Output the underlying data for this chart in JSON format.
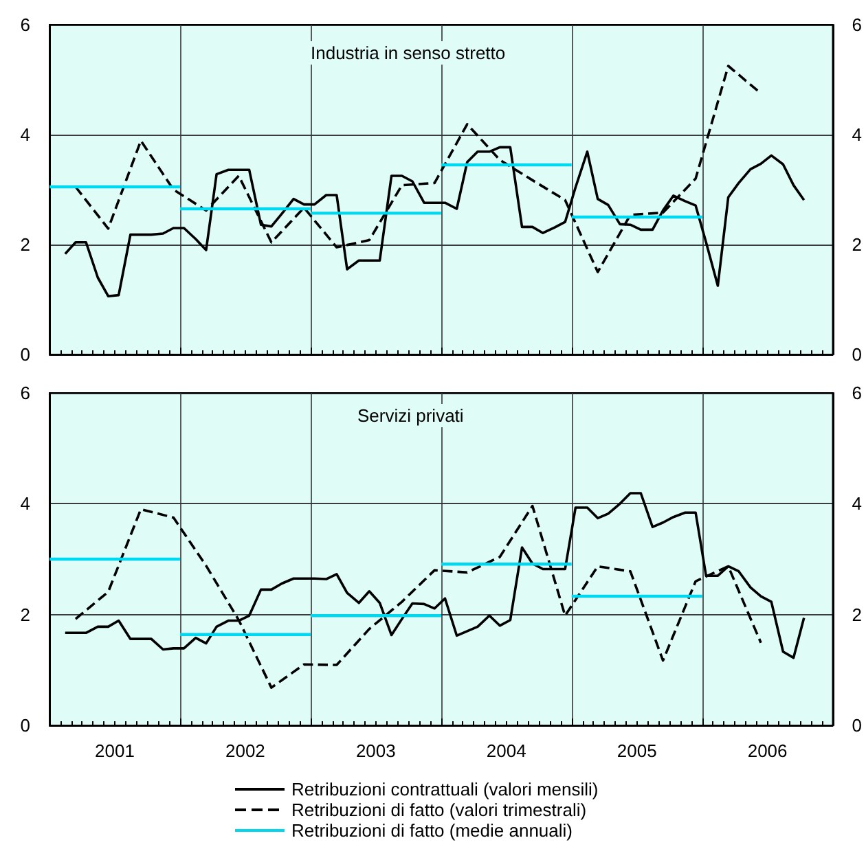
{
  "chart_data": [
    {
      "type": "line",
      "title": "Industria in senso stretto",
      "xlim": [
        2001,
        2007
      ],
      "xticks": [
        {
          "value": 2001,
          "label": null
        },
        {
          "value": 2002,
          "label": null
        },
        {
          "value": 2003,
          "label": null
        },
        {
          "value": 2004,
          "label": null
        },
        {
          "value": 2005,
          "label": null
        },
        {
          "value": 2006,
          "label": null
        },
        {
          "value": 2007,
          "label": null
        }
      ],
      "ylim": [
        0,
        6
      ],
      "yticks": [
        0,
        2,
        4,
        6
      ],
      "y2lim": [
        0,
        6
      ],
      "y2ticks": [
        0,
        2,
        4,
        6
      ],
      "grid": true,
      "legend": false,
      "tick_labels": "y",
      "marker": "none",
      "series": [
        {
          "color": "#000000",
          "line_style": "solid",
          "x": [
            2001.12,
            2001.2,
            2001.28,
            2001.37,
            2001.45,
            2001.53,
            2001.62,
            2001.7,
            2001.78,
            2001.87,
            2001.95,
            2002.03,
            2002.12,
            2002.2,
            2002.28,
            2002.37,
            2002.45,
            2002.53,
            2002.62,
            2002.7,
            2002.78,
            2002.87,
            2002.95,
            2003.03,
            2003.12,
            2003.2,
            2003.28,
            2003.37,
            2003.45,
            2003.53,
            2003.62,
            2003.7,
            2003.78,
            2003.87,
            2003.95,
            2004.03,
            2004.12,
            2004.2,
            2004.28,
            2004.37,
            2004.45,
            2004.53,
            2004.62,
            2004.7,
            2004.78,
            2004.87,
            2004.95,
            2005.03,
            2005.12,
            2005.2,
            2005.28,
            2005.37,
            2005.45,
            2005.53,
            2005.62,
            2005.7,
            2005.78,
            2005.87,
            2005.95,
            2006.03,
            2006.12,
            2006.2,
            2006.28,
            2006.37,
            2006.45,
            2006.53,
            2006.62,
            2006.7,
            2006.78
          ],
          "values": [
            1.83,
            2.04,
            2.04,
            1.4,
            1.06,
            1.08,
            2.18,
            2.18,
            2.18,
            2.2,
            2.3,
            2.3,
            2.1,
            1.9,
            3.28,
            3.36,
            3.36,
            3.36,
            2.36,
            2.33,
            2.56,
            2.83,
            2.73,
            2.73,
            2.9,
            2.9,
            1.55,
            1.71,
            1.71,
            1.71,
            3.25,
            3.25,
            3.15,
            2.76,
            2.76,
            2.76,
            2.65,
            3.5,
            3.69,
            3.69,
            3.77,
            3.77,
            2.32,
            2.32,
            2.21,
            2.31,
            2.41,
            3.04,
            3.69,
            2.83,
            2.72,
            2.37,
            2.36,
            2.27,
            2.27,
            2.62,
            2.89,
            2.79,
            2.71,
            2.04,
            1.25,
            2.86,
            3.12,
            3.37,
            3.47,
            3.62,
            3.46,
            3.08,
            2.81
          ]
        },
        {
          "color": "#000000",
          "line_style": "dashed",
          "x": [
            2001.2,
            2001.45,
            2001.7,
            2001.95,
            2002.2,
            2002.45,
            2002.7,
            2002.95,
            2003.2,
            2003.45,
            2003.7,
            2003.95,
            2004.2,
            2004.45,
            2004.7,
            2004.95,
            2005.2,
            2005.45,
            2005.7,
            2005.95,
            2006.2,
            2006.45
          ],
          "values": [
            3.05,
            2.29,
            3.89,
            3.0,
            2.62,
            3.25,
            2.04,
            2.67,
            1.95,
            2.08,
            3.08,
            3.12,
            4.19,
            3.54,
            3.17,
            2.81,
            1.5,
            2.54,
            2.58,
            3.2,
            5.25,
            4.75
          ]
        },
        {
          "color": "#00d8f0",
          "line_style": "solid",
          "x": [
            2001,
            2002,
            null,
            2002,
            2003,
            null,
            2003,
            2004,
            null,
            2004,
            2005,
            null,
            2005,
            2006
          ],
          "values": [
            3.05,
            3.05,
            null,
            2.65,
            2.65,
            null,
            2.57,
            2.57,
            null,
            3.45,
            3.45,
            null,
            2.5,
            2.5
          ]
        }
      ]
    },
    {
      "type": "line",
      "title": "Servizi privati",
      "xlim": [
        2001,
        2007
      ],
      "xticks": [
        {
          "value": 2001,
          "label": null
        },
        {
          "value": 2001.5,
          "label": "2001"
        },
        {
          "value": 2002,
          "label": null
        },
        {
          "value": 2002.5,
          "label": "2002"
        },
        {
          "value": 2003,
          "label": null
        },
        {
          "value": 2003.5,
          "label": "2003"
        },
        {
          "value": 2004,
          "label": null
        },
        {
          "value": 2004.5,
          "label": "2004"
        },
        {
          "value": 2005,
          "label": null
        },
        {
          "value": 2005.5,
          "label": "2005"
        },
        {
          "value": 2006,
          "label": null
        },
        {
          "value": 2006.5,
          "label": "2006"
        },
        {
          "value": 2007,
          "label": null
        }
      ],
      "ylim": [
        0,
        6
      ],
      "yticks": [
        0,
        2,
        4,
        6
      ],
      "y2lim": [
        0,
        6
      ],
      "y2ticks": [
        0,
        2,
        4,
        6
      ],
      "grid": true,
      "legend": "bottom",
      "marker": "none",
      "series": [
        {
          "name": "Retribuzioni contrattuali (valori mensili)",
          "color": "#000000",
          "line_style": "solid",
          "x": [
            2001.12,
            2001.2,
            2001.28,
            2001.37,
            2001.45,
            2001.53,
            2001.62,
            2001.7,
            2001.78,
            2001.87,
            2001.95,
            2002.03,
            2002.12,
            2002.2,
            2002.28,
            2002.37,
            2002.45,
            2002.53,
            2002.62,
            2002.7,
            2002.78,
            2002.87,
            2002.95,
            2003.03,
            2003.12,
            2003.2,
            2003.28,
            2003.37,
            2003.45,
            2003.53,
            2003.62,
            2003.7,
            2003.78,
            2003.87,
            2003.95,
            2004.03,
            2004.12,
            2004.2,
            2004.28,
            2004.37,
            2004.45,
            2004.53,
            2004.62,
            2004.7,
            2004.78,
            2004.87,
            2004.95,
            2005.03,
            2005.12,
            2005.2,
            2005.28,
            2005.37,
            2005.45,
            2005.53,
            2005.62,
            2005.7,
            2005.78,
            2005.87,
            2005.95,
            2006.03,
            2006.12,
            2006.2,
            2006.28,
            2006.37,
            2006.45,
            2006.53,
            2006.62,
            2006.7,
            2006.78
          ],
          "values": [
            1.67,
            1.67,
            1.67,
            1.78,
            1.78,
            1.89,
            1.56,
            1.56,
            1.56,
            1.37,
            1.39,
            1.39,
            1.58,
            1.48,
            1.78,
            1.89,
            1.89,
            1.98,
            2.45,
            2.45,
            2.56,
            2.65,
            2.65,
            2.65,
            2.64,
            2.73,
            2.39,
            2.21,
            2.42,
            2.21,
            1.63,
            1.92,
            2.2,
            2.19,
            2.11,
            2.29,
            1.62,
            1.7,
            1.78,
            1.98,
            1.8,
            1.9,
            3.21,
            2.92,
            2.82,
            2.82,
            2.82,
            3.93,
            3.93,
            3.74,
            3.82,
            4.0,
            4.19,
            4.19,
            3.58,
            3.66,
            3.76,
            3.84,
            3.84,
            2.7,
            2.7,
            2.87,
            2.78,
            2.49,
            2.33,
            2.23,
            1.33,
            1.22,
            1.94
          ]
        },
        {
          "name": "Retribuzioni di fatto (valori trimestrali)",
          "color": "#000000",
          "line_style": "dashed",
          "x": [
            2001.2,
            2001.45,
            2001.7,
            2001.95,
            2002.2,
            2002.45,
            2002.7,
            2002.95,
            2003.2,
            2003.45,
            2003.7,
            2003.95,
            2004.2,
            2004.45,
            2004.7,
            2004.95,
            2005.2,
            2005.45,
            2005.7,
            2005.95,
            2006.2,
            2006.45
          ],
          "values": [
            1.92,
            2.41,
            3.9,
            3.75,
            2.88,
            1.9,
            0.68,
            1.1,
            1.09,
            1.74,
            2.23,
            2.8,
            2.76,
            3.04,
            3.96,
            1.98,
            2.87,
            2.78,
            1.17,
            2.6,
            2.87,
            1.49
          ]
        },
        {
          "name": "Retribuzioni di fatto (medie annuali)",
          "color": "#00d8f0",
          "line_style": "solid",
          "x": [
            2001,
            2002,
            null,
            2002,
            2003,
            null,
            2003,
            2004,
            null,
            2004,
            2005,
            null,
            2005,
            2006
          ],
          "values": [
            3.0,
            3.0,
            null,
            1.64,
            1.64,
            null,
            1.98,
            1.98,
            null,
            2.91,
            2.91,
            null,
            2.33,
            2.33
          ]
        }
      ]
    }
  ]
}
